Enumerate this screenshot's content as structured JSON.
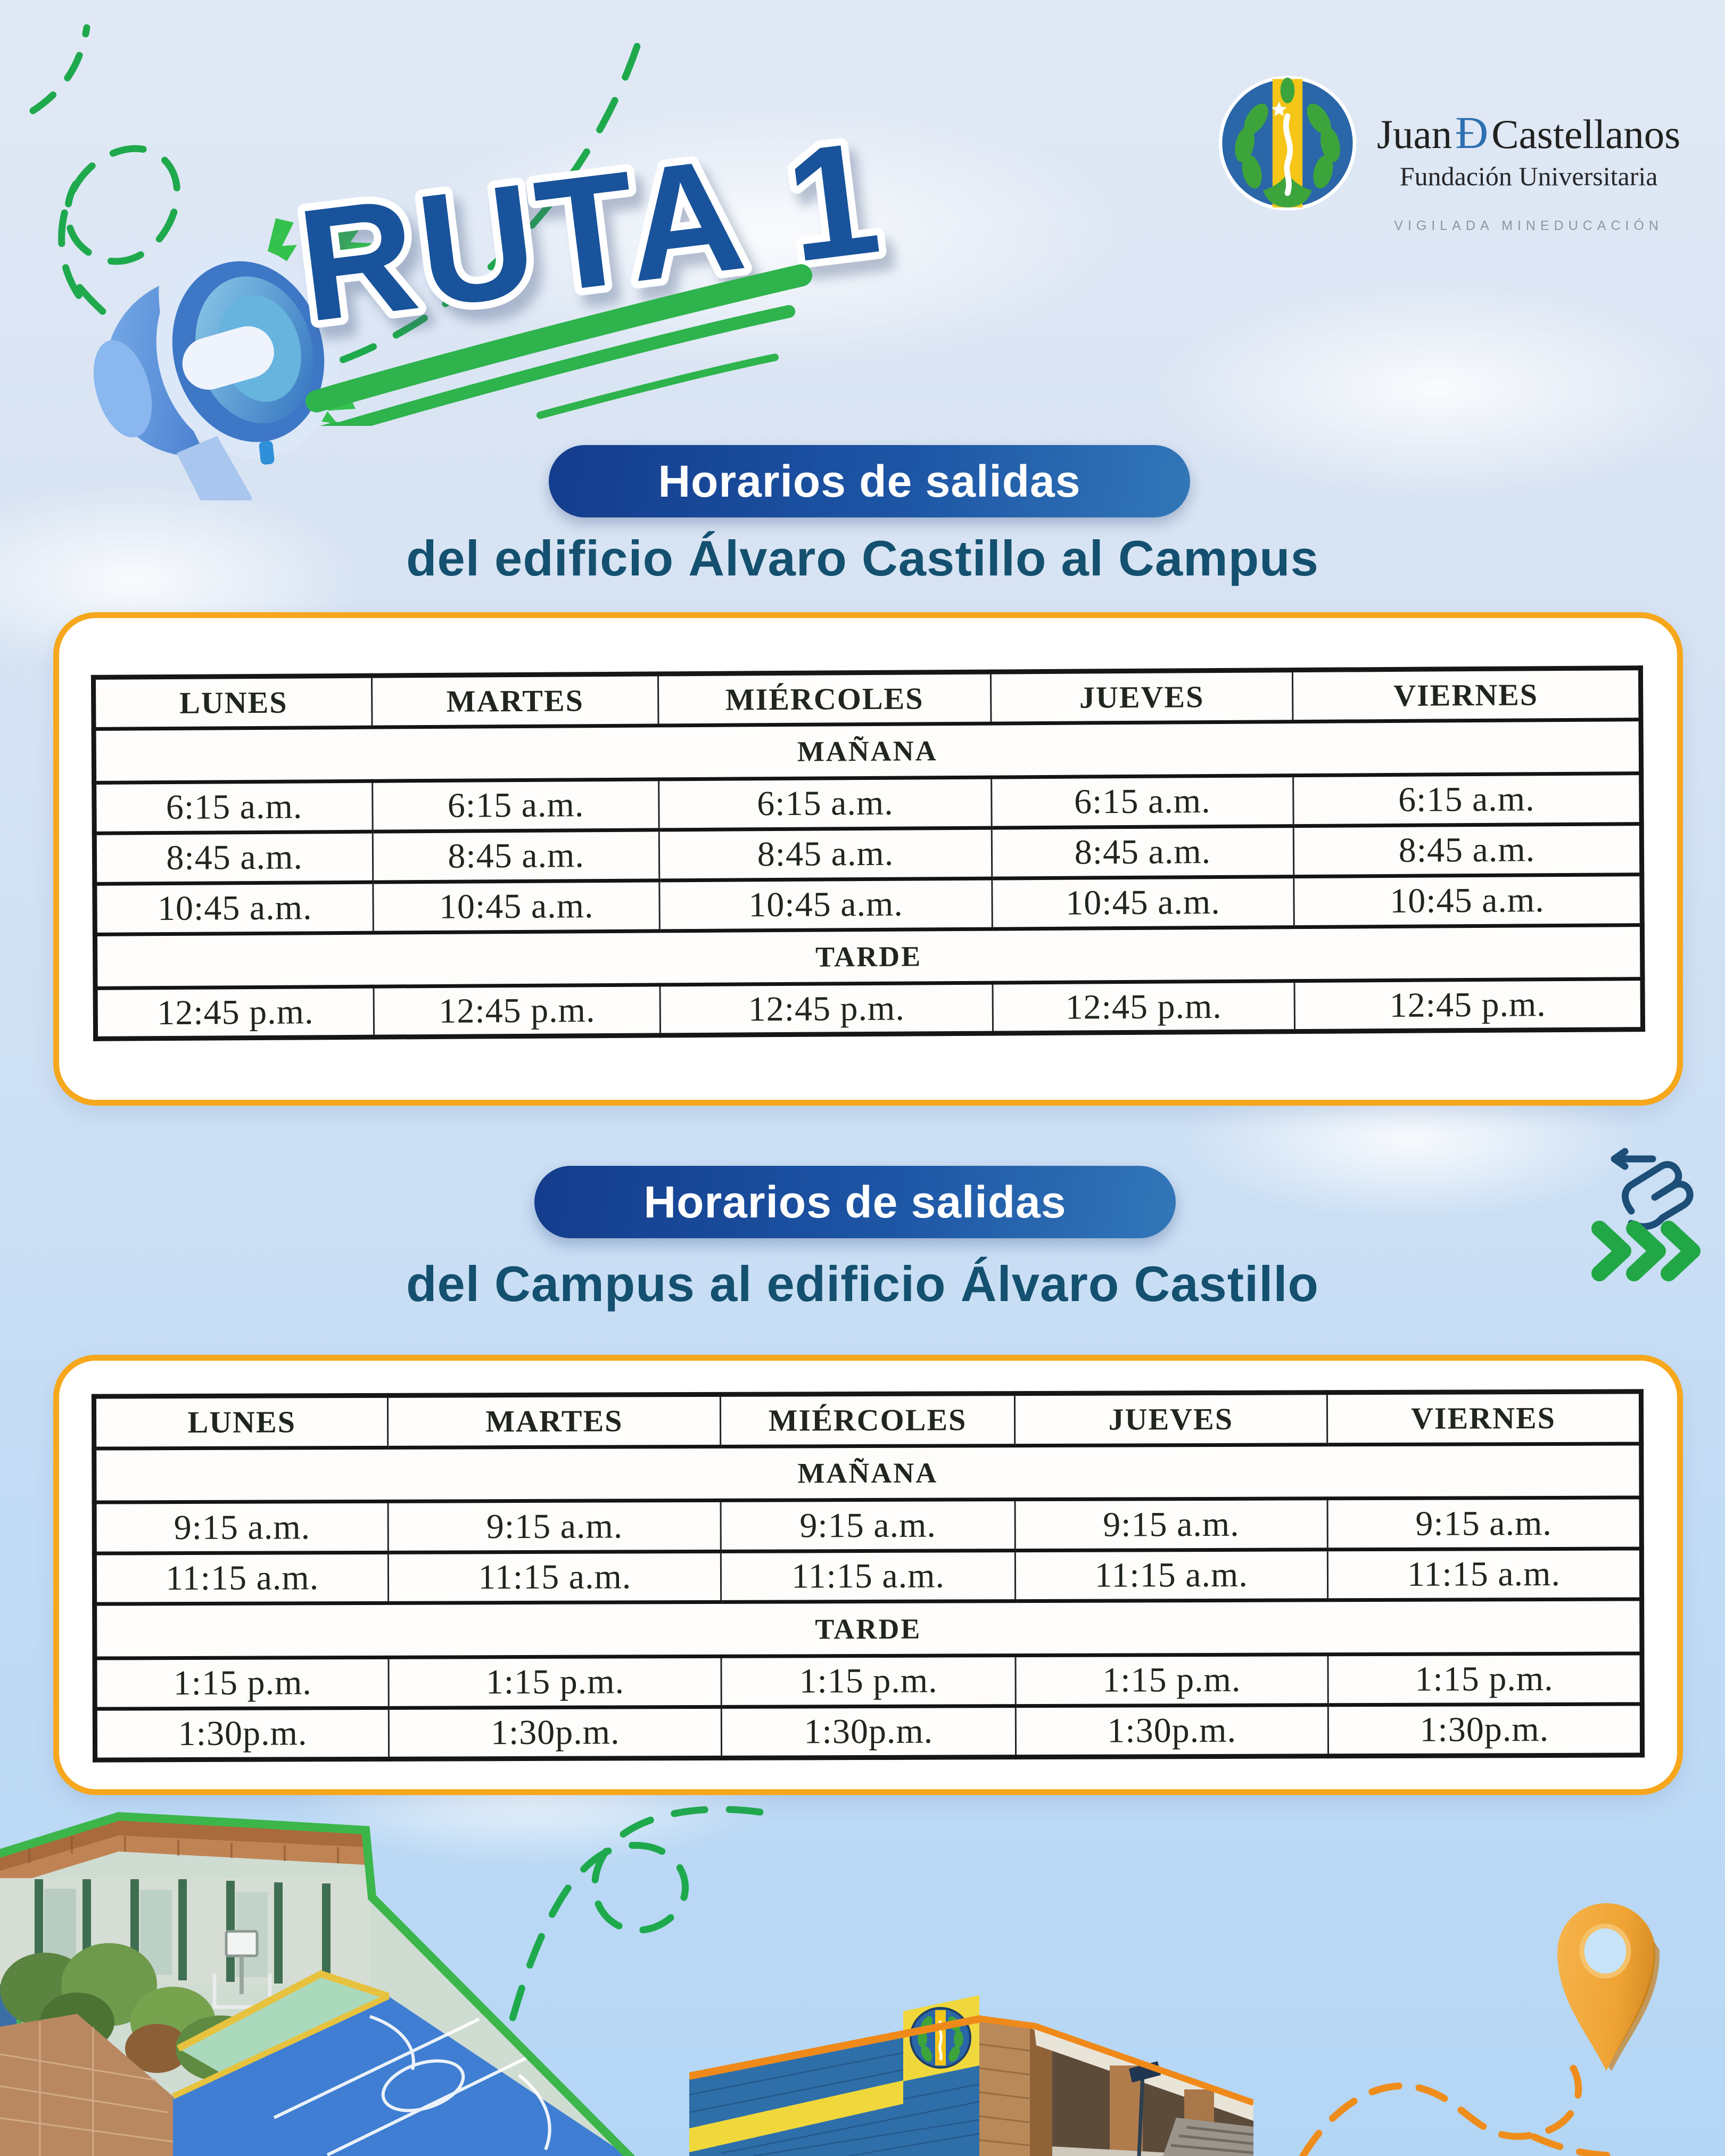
{
  "header": {
    "route_title": "RUTA 1",
    "logo": {
      "first": "Juan",
      "d": "Đ",
      "last": "Castellanos",
      "subtitle": "Fundación Universitaria",
      "tagline": "VIGILADA MINEDUCACIÓN"
    }
  },
  "sections": [
    {
      "pill_label": "Horarios de salidas",
      "subtitle": "del edificio Álvaro Castillo al Campus"
    },
    {
      "pill_label": "Horarios de salidas",
      "subtitle": "del Campus al edificio Álvaro Castillo"
    }
  ],
  "tables": [
    {
      "days": [
        "LUNES",
        "MARTES",
        "MIÉRCOLES",
        "JUEVES",
        "VIERNES"
      ],
      "sections": [
        {
          "label": "MAÑANA",
          "rows": [
            [
              "6:15 a.m.",
              "6:15 a.m.",
              "6:15 a.m.",
              "6:15 a.m.",
              "6:15 a.m."
            ],
            [
              "8:45 a.m.",
              "8:45 a.m.",
              "8:45 a.m.",
              "8:45 a.m.",
              "8:45 a.m."
            ],
            [
              "10:45 a.m.",
              "10:45 a.m.",
              "10:45 a.m.",
              "10:45 a.m.",
              "10:45 a.m."
            ]
          ]
        },
        {
          "label": "TARDE",
          "rows": [
            [
              "12:45 p.m.",
              "12:45 p.m.",
              "12:45 p.m.",
              "12:45 p.m.",
              "12:45 p.m."
            ]
          ]
        }
      ]
    },
    {
      "days": [
        "LUNES",
        "MARTES",
        "MIÉRCOLES",
        "JUEVES",
        "VIERNES"
      ],
      "sections": [
        {
          "label": "MAÑANA",
          "rows": [
            [
              "9:15 a.m.",
              "9:15 a.m.",
              "9:15 a.m.",
              "9:15 a.m.",
              "9:15 a.m."
            ],
            [
              "11:15 a.m.",
              "11:15 a.m.",
              "11:15 a.m.",
              "11:15 a.m.",
              "11:15 a.m."
            ]
          ]
        },
        {
          "label": "TARDE",
          "rows": [
            [
              "1:15 p.m.",
              "1:15 p.m.",
              "1:15 p.m.",
              "1:15 p.m.",
              "1:15 p.m."
            ],
            [
              "1:30p.m.",
              "1:30p.m.",
              "1:30p.m.",
              "1:30p.m.",
              "1:30p.m."
            ]
          ]
        }
      ]
    }
  ],
  "colors": {
    "accent_green": "#1fa94d",
    "brush_green": "#2eb34d",
    "accent_orange_border": "#f6a71c",
    "dash_orange": "#ee8d1c",
    "pill_blue_dark": "#143c8c",
    "pill_blue_light": "#3277b8",
    "route_title_blue": "#19539b",
    "subtitle_teal": "#14506f",
    "table_ink": "#20261f",
    "pin_orange": "#f2a93b",
    "swipe_icon_blue": "#1d4e78",
    "logo_oval_blue": "#2a66a8",
    "logo_band_yellow": "#f5c518"
  }
}
